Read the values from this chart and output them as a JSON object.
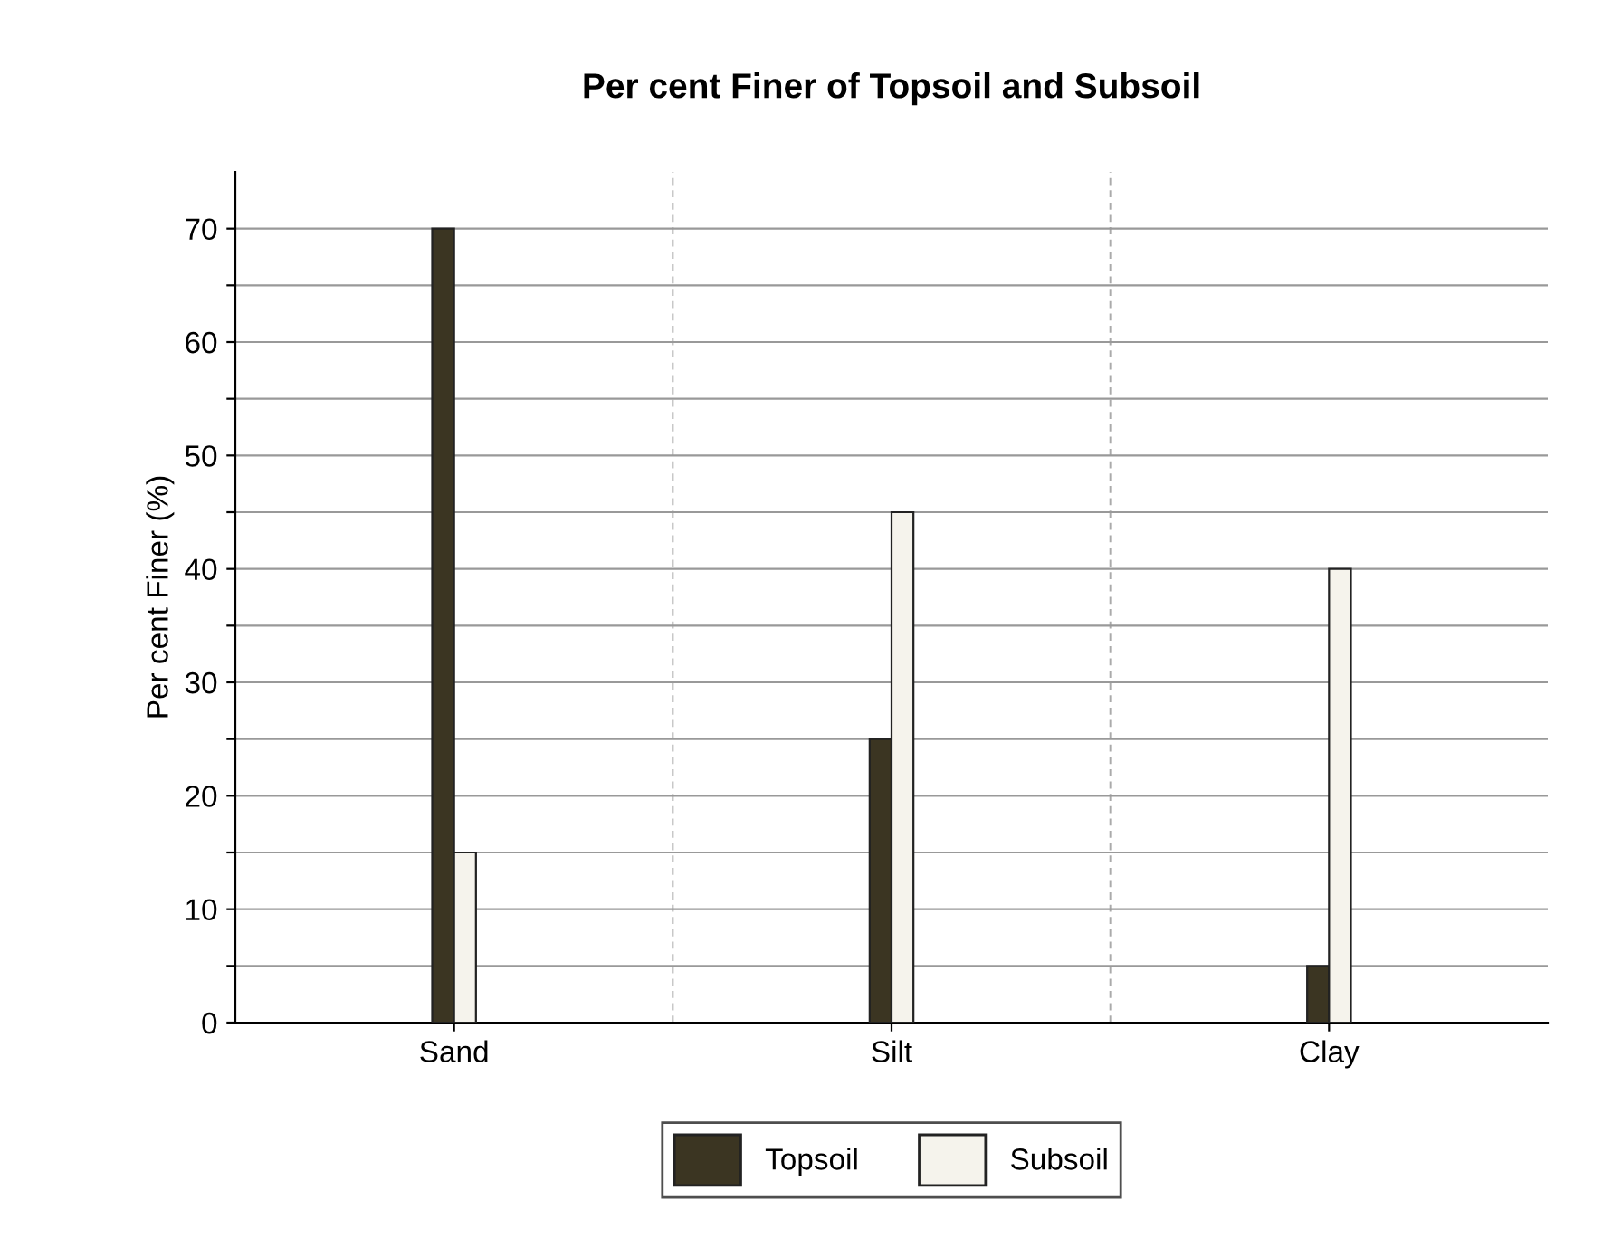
{
  "chart_data": {
    "type": "bar",
    "title": "Per cent Finer of Topsoil and Subsoil",
    "ylabel": "Per cent Finer (%)",
    "categories": [
      "Sand",
      "Silt",
      "Clay"
    ],
    "series": [
      {
        "name": "Topsoil",
        "color": "#3b3522",
        "values": [
          70,
          25,
          5
        ]
      },
      {
        "name": "Subsoil",
        "color": "#f5f3ec",
        "values": [
          15,
          45,
          40
        ]
      }
    ],
    "ylim": [
      0,
      75
    ],
    "yticks": [
      0,
      {
        "value": 5,
        "label": null
      },
      10,
      {
        "value": 15,
        "label": null
      },
      20,
      {
        "value": 25,
        "label": null
      },
      30,
      {
        "value": 35,
        "label": null
      },
      40,
      {
        "value": 45,
        "label": null
      },
      50,
      {
        "value": 55,
        "label": null
      },
      60,
      {
        "value": 65,
        "label": null
      },
      70
    ],
    "grid": "y",
    "legend": "bottom"
  }
}
